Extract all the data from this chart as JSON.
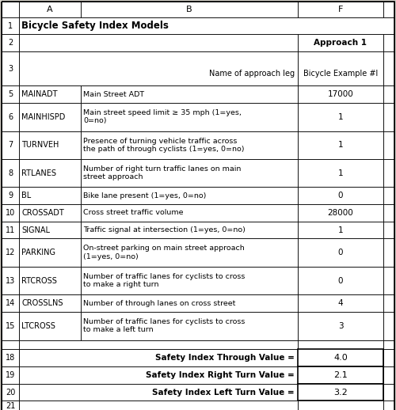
{
  "title": "Bicycle Safety Index Models",
  "approach_label": "Approach 1",
  "approach_name": "Bicycle Example #l",
  "name_of_approach_leg": "Name of approach leg",
  "rows": [
    {
      "row": "5",
      "col_a": "MAINADT",
      "col_b": "Main Street ADT",
      "col_f": "17000"
    },
    {
      "row": "6",
      "col_a": "MAINHISPD",
      "col_b": "Main street speed limit ≥ 35 mph (1=yes,\n0=no)",
      "col_f": "1"
    },
    {
      "row": "7",
      "col_a": "TURNVEH",
      "col_b": "Presence of turning vehicle traffic across\nthe path of through cyclists (1=yes, 0=no)",
      "col_f": "1"
    },
    {
      "row": "8",
      "col_a": "RTLANES",
      "col_b": "Number of right turn traffic lanes on main\nstreet approach",
      "col_f": "1"
    },
    {
      "row": "9",
      "col_a": "BL",
      "col_b": "Bike lane present (1=yes, 0=no)",
      "col_f": "0"
    },
    {
      "row": "10",
      "col_a": "CROSSADT",
      "col_b": "Cross street traffic volume",
      "col_f": "28000"
    },
    {
      "row": "11",
      "col_a": "SIGNAL",
      "col_b": "Traffic signal at intersection (1=yes, 0=no)",
      "col_f": "1"
    },
    {
      "row": "12",
      "col_a": "PARKING",
      "col_b": "On-street parking on main street approach\n(1=yes, 0=no)",
      "col_f": "0"
    },
    {
      "row": "13",
      "col_a": "RTCROSS",
      "col_b": "Number of traffic lanes for cyclists to cross\nto make a right turn",
      "col_f": "0"
    },
    {
      "row": "14",
      "col_a": "CROSSLNS",
      "col_b": "Number of through lanes on cross street",
      "col_f": "4"
    },
    {
      "row": "15",
      "col_a": "LTCROSS",
      "col_b": "Number of traffic lanes for cyclists to cross\nto make a left turn",
      "col_f": "3"
    }
  ],
  "summary_rows": [
    {
      "row": "18",
      "label": "Safety Index Through Value =",
      "value": "4.0"
    },
    {
      "row": "19",
      "label": "Safety Index Right Turn Value =",
      "value": "2.1"
    },
    {
      "row": "20",
      "label": "Safety Index Left Turn Value =",
      "value": "3.2"
    }
  ],
  "bg_color": "#d4d0c8",
  "table_bg": "#ffffff",
  "border_color": "#000000"
}
